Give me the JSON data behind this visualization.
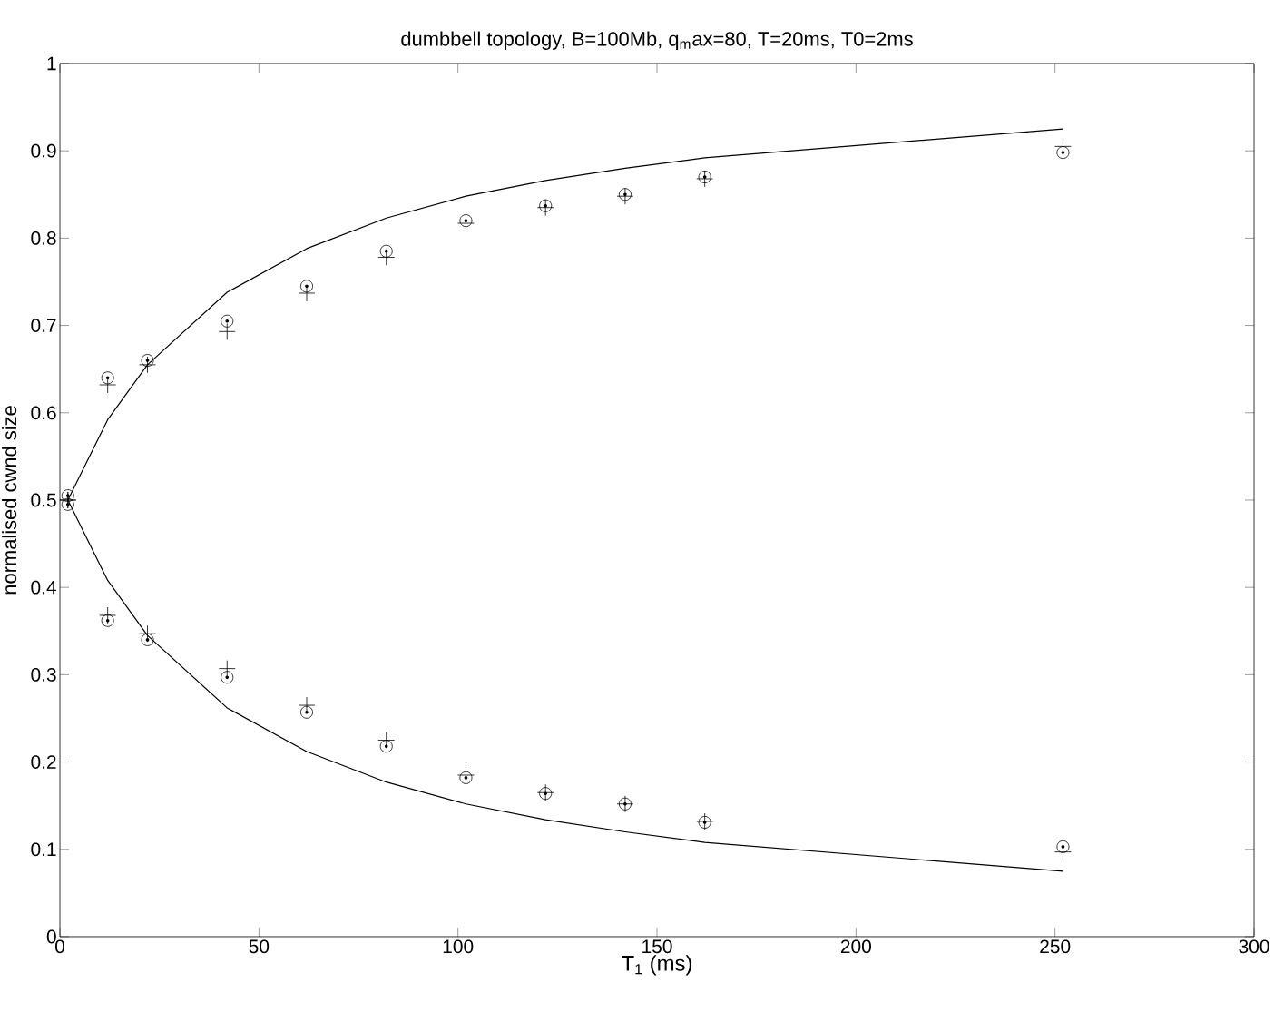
{
  "chart_data": {
    "type": "scatter",
    "title": "dumbbell topology, B=100Mb, q$_{m}$ax=80, T=20ms, T0=2ms",
    "xlabel": "T$_{1}$ (ms)",
    "ylabel": "normalised cwnd size",
    "xlim": [
      0,
      300
    ],
    "ylim": [
      0,
      1
    ],
    "xticks": [
      0,
      50,
      100,
      150,
      200,
      250,
      300
    ],
    "yticks": [
      0,
      0.1,
      0.2,
      0.3,
      0.4,
      0.5,
      0.6,
      0.7,
      0.8,
      0.9,
      1
    ],
    "series": [
      {
        "marker": "circle",
        "color": "#000000",
        "x": [
          2,
          12,
          22,
          42,
          62,
          82,
          102,
          122,
          142,
          162,
          252
        ],
        "values": [
          0.505,
          0.64,
          0.66,
          0.705,
          0.745,
          0.785,
          0.82,
          0.837,
          0.85,
          0.87,
          0.898
        ]
      },
      {
        "marker": "cross",
        "color": "#000000",
        "x": [
          2,
          12,
          22,
          42,
          62,
          82,
          102,
          122,
          142,
          162,
          252
        ],
        "values": [
          0.5,
          0.632,
          0.655,
          0.693,
          0.737,
          0.778,
          0.817,
          0.835,
          0.848,
          0.868,
          0.905
        ]
      },
      {
        "marker": "circle",
        "color": "#000000",
        "x": [
          2,
          12,
          22,
          42,
          62,
          82,
          102,
          122,
          142,
          162,
          252
        ],
        "values": [
          0.495,
          0.362,
          0.34,
          0.297,
          0.257,
          0.218,
          0.182,
          0.164,
          0.152,
          0.131,
          0.103
        ]
      },
      {
        "marker": "cross",
        "color": "#000000",
        "x": [
          2,
          12,
          22,
          42,
          62,
          82,
          102,
          122,
          142,
          162,
          252
        ],
        "values": [
          0.5,
          0.368,
          0.347,
          0.307,
          0.265,
          0.225,
          0.185,
          0.165,
          0.152,
          0.132,
          0.097
        ]
      },
      {
        "type": "line",
        "marker": "none",
        "line_style": "solid",
        "color": "#000000",
        "x": [
          2,
          12,
          22,
          42,
          62,
          82,
          102,
          122,
          142,
          162,
          252
        ],
        "values": [
          0.5,
          0.592,
          0.655,
          0.738,
          0.788,
          0.823,
          0.848,
          0.866,
          0.88,
          0.892,
          0.925
        ]
      },
      {
        "type": "line",
        "marker": "none",
        "line_style": "solid",
        "color": "#000000",
        "x": [
          2,
          12,
          22,
          42,
          62,
          82,
          102,
          122,
          142,
          162,
          252
        ],
        "values": [
          0.5,
          0.408,
          0.345,
          0.262,
          0.212,
          0.177,
          0.152,
          0.134,
          0.12,
          0.108,
          0.075
        ]
      }
    ]
  }
}
